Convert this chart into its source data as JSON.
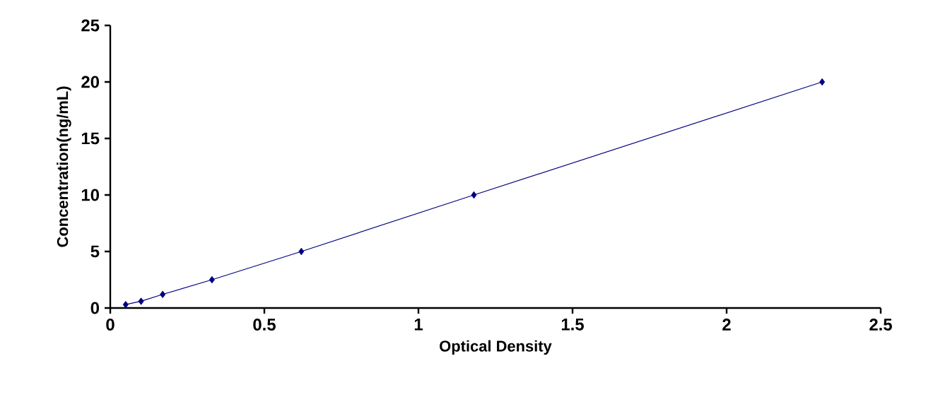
{
  "chart_data": {
    "type": "line",
    "xlabel": "Optical Density",
    "ylabel": "Concentration(ng/mL)",
    "x": [
      0.05,
      0.1,
      0.17,
      0.33,
      0.62,
      1.18,
      2.31
    ],
    "series": [
      {
        "color": "#000080",
        "values": [
          0.3,
          0.6,
          1.2,
          2.5,
          5,
          10,
          20
        ]
      }
    ],
    "marker": "diamond",
    "line_style": "solid",
    "grid": false,
    "xlim": [
      0,
      2.5
    ],
    "ylim": [
      0,
      25
    ],
    "xticks": [
      0,
      0.5,
      1,
      1.5,
      2,
      2.5
    ],
    "yticks": [
      0,
      5,
      10,
      15,
      20,
      25
    ]
  }
}
